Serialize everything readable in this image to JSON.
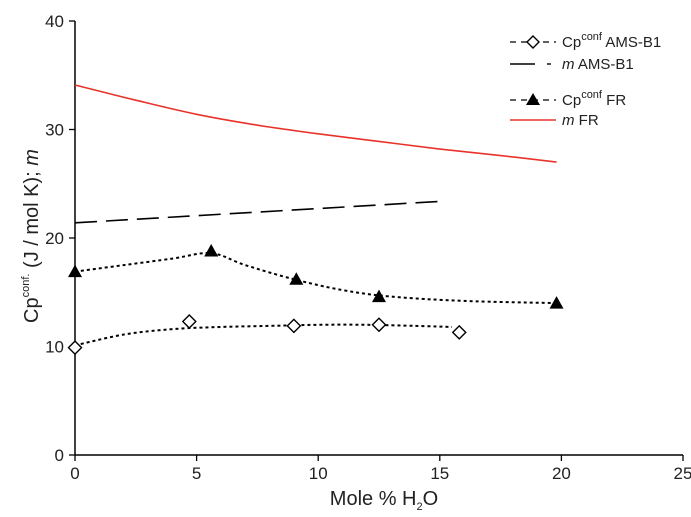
{
  "chart_data": {
    "type": "line",
    "xlabel": {
      "prefix": "Mole % H",
      "sub": "2",
      "suffix": "O"
    },
    "ylabel": {
      "prefix": "Cp",
      "sup": "conf.",
      "suffix": " (J / mol K); ",
      "italic": "m"
    },
    "xlim": [
      0,
      25
    ],
    "ylim": [
      0,
      40
    ],
    "xticks": [
      "0",
      "5",
      "10",
      "15",
      "20",
      "25"
    ],
    "yticks": [
      "0",
      "10",
      "20",
      "30",
      "40"
    ],
    "grid": false,
    "legend_position": "top-right",
    "series": [
      {
        "key": "cp_ams",
        "legend": {
          "prefix": "Cp",
          "sup": "conf",
          "suffix": " AMS-B1"
        },
        "points": [
          [
            0,
            9.9
          ],
          [
            4.7,
            12.3
          ],
          [
            9.0,
            11.9
          ],
          [
            12.5,
            12.0
          ],
          [
            15.8,
            11.3
          ]
        ],
        "curve": [
          [
            0,
            10.1
          ],
          [
            2,
            11.1
          ],
          [
            4,
            11.6
          ],
          [
            6,
            11.8
          ],
          [
            8,
            11.9
          ],
          [
            10,
            12.0
          ],
          [
            12,
            12.0
          ],
          [
            14,
            11.9
          ],
          [
            15.5,
            11.8
          ]
        ],
        "marker": "diamond-open",
        "line_style": "dotted",
        "color": "#000000"
      },
      {
        "key": "m_ams",
        "legend": {
          "italic": "m",
          "suffix": " AMS-B1"
        },
        "x": [
          0,
          15.2
        ],
        "y": [
          21.4,
          23.4
        ],
        "line_style": "long-dash",
        "color": "#000000"
      },
      {
        "key": "cp_fr",
        "legend": {
          "prefix": "Cp",
          "sup": "conf",
          "suffix": " FR"
        },
        "points": [
          [
            0,
            16.9
          ],
          [
            5.6,
            18.8
          ],
          [
            9.1,
            16.2
          ],
          [
            12.5,
            14.6
          ],
          [
            19.8,
            14.0
          ]
        ],
        "curve": [
          [
            0,
            16.9
          ],
          [
            2,
            17.5
          ],
          [
            4,
            18.1
          ],
          [
            5.6,
            18.6
          ],
          [
            7,
            17.5
          ],
          [
            9,
            16.2
          ],
          [
            11,
            15.2
          ],
          [
            13,
            14.6
          ],
          [
            16,
            14.2
          ],
          [
            19.8,
            14.0
          ]
        ],
        "marker": "triangle-filled",
        "line_style": "dotted",
        "color": "#000000"
      },
      {
        "key": "m_fr",
        "legend": {
          "italic": "m",
          "suffix": " FR"
        },
        "x": [
          0,
          2.5,
          5,
          7.5,
          10,
          12.5,
          15,
          17.5,
          19.8
        ],
        "y": [
          34.1,
          32.7,
          31.4,
          30.4,
          29.6,
          28.9,
          28.2,
          27.6,
          27.0
        ],
        "line_style": "solid",
        "color": "#e8332a"
      }
    ]
  }
}
